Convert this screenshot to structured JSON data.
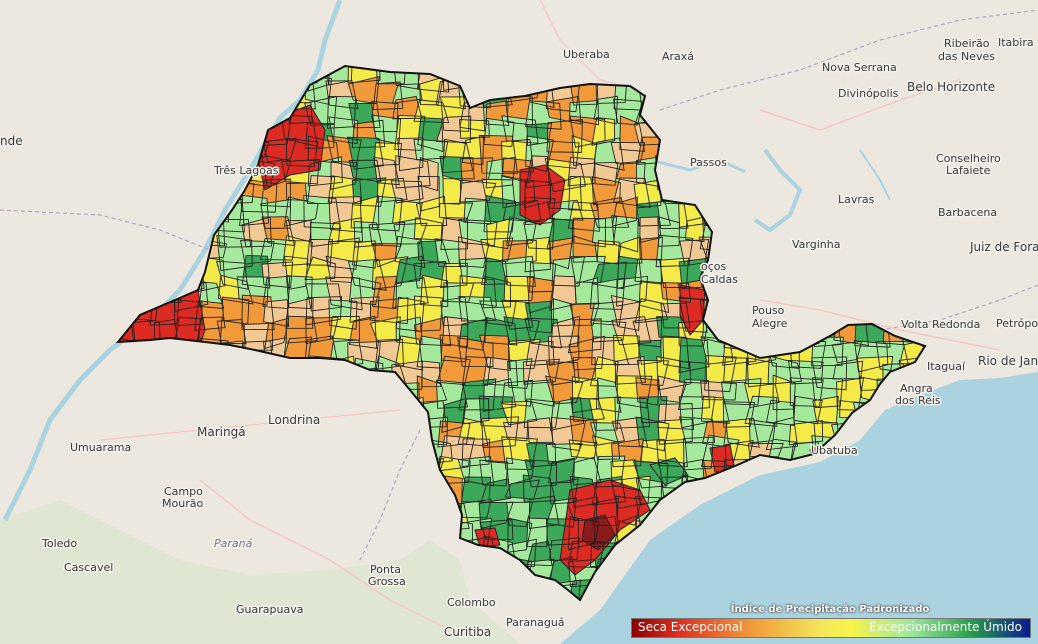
{
  "map": {
    "colors": {
      "water": "#aad3df",
      "land": "#ece8e0",
      "border": "#222222",
      "seca_excepcional": "#8b1a1a",
      "muito_seco": "#dd2a22",
      "seco": "#f29a3a",
      "moderado_seco": "#f2c995",
      "normal_seco": "#f4ea48",
      "normal_umido": "#a4e99c",
      "umido": "#3ba85a"
    },
    "labels": {
      "uberaba": "Uberaba",
      "araxa": "Araxá",
      "ribeirao_das_neves": "Ribeirão das Neves",
      "itabira": "Itabira",
      "nova_serrana": "Nova Serrana",
      "belo_horizonte": "Belo Horizonte",
      "divinopolis": "Divinópolis",
      "tres_lagoas": "Três Lagoas",
      "passos": "Passos",
      "conselheiro_lafaiete": "Conselheiro Lafaiete",
      "lavras": "Lavras",
      "barbacena": "Barbacena",
      "juiz_de_fora": "Juiz de Fora",
      "varginha": "Varginha",
      "pocos_de_caldas": "Poços de Caldas",
      "pouso_alegre": "Pouso Alegre",
      "volta_redonda": "Volta Redonda",
      "petropolis": "Petrópoli",
      "itaguai": "Itaguaí",
      "rio_de_janeiro": "Rio de Jane",
      "angra_dos_reis": "Angra dos Reis",
      "ubatuba": "Ubatuba",
      "umuarama": "Umuarama",
      "maringa": "Maringá",
      "londrina": "Londrina",
      "campo_mourao": "Campo Mourão",
      "parana": "Paraná",
      "toledo": "Toledo",
      "cascavel": "Cascavel",
      "ponta_grossa": "Ponta Grossa",
      "guarapuava": "Guarapuava",
      "colombo": "Colombo",
      "curitiba": "Curitiba",
      "paranagua": "Paranaguá",
      "left_edge": "nde"
    }
  },
  "legend": {
    "title": "Índice de Precipitação Padronizado",
    "left_label": "Seca Excepcional",
    "right_label": "Excepcionalmente Úmido"
  }
}
